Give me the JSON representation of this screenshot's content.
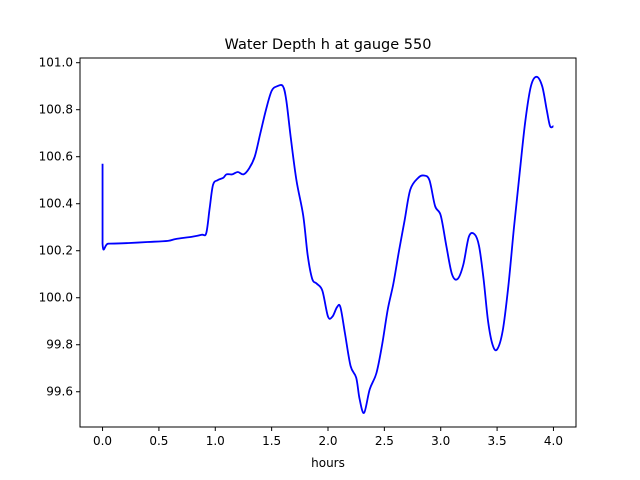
{
  "chart_data": {
    "type": "line",
    "title": "Water Depth h at gauge 550",
    "xlabel": "hours",
    "ylabel": "",
    "xlim": [
      -0.2,
      4.2
    ],
    "ylim": [
      99.45,
      101.02
    ],
    "grid": false,
    "xticks": [
      0.0,
      0.5,
      1.0,
      1.5,
      2.0,
      2.5,
      3.0,
      3.5,
      4.0
    ],
    "xtick_labels": [
      "0.0",
      "0.5",
      "1.0",
      "1.5",
      "2.0",
      "2.5",
      "3.0",
      "3.5",
      "4.0"
    ],
    "yticks": [
      99.6,
      99.8,
      100.0,
      100.2,
      100.4,
      100.6,
      100.8,
      101.0
    ],
    "ytick_labels": [
      "99.6",
      "99.8",
      "100.0",
      "100.2",
      "100.4",
      "100.6",
      "100.8",
      "101.0"
    ],
    "series": [
      {
        "color": "#0000ff",
        "x": [
          0.0,
          0.0,
          0.05,
          0.2,
          0.4,
          0.58,
          0.65,
          0.8,
          0.88,
          0.92,
          0.95,
          0.98,
          1.02,
          1.07,
          1.1,
          1.15,
          1.2,
          1.25,
          1.3,
          1.35,
          1.4,
          1.45,
          1.5,
          1.55,
          1.6,
          1.63,
          1.67,
          1.72,
          1.78,
          1.82,
          1.86,
          1.9,
          1.95,
          2.0,
          2.04,
          2.08,
          2.11,
          2.15,
          2.2,
          2.25,
          2.28,
          2.32,
          2.37,
          2.43,
          2.48,
          2.53,
          2.58,
          2.63,
          2.68,
          2.73,
          2.8,
          2.85,
          2.9,
          2.95,
          3.0,
          3.05,
          3.1,
          3.15,
          3.2,
          3.25,
          3.3,
          3.34,
          3.38,
          3.42,
          3.46,
          3.5,
          3.55,
          3.6,
          3.65,
          3.7,
          3.75,
          3.8,
          3.85,
          3.9,
          3.94,
          3.97,
          4.0
        ],
        "y": [
          100.57,
          100.23,
          100.23,
          100.232,
          100.237,
          100.242,
          100.25,
          100.26,
          100.268,
          100.275,
          100.38,
          100.48,
          100.5,
          100.51,
          100.525,
          100.525,
          100.535,
          100.525,
          100.55,
          100.6,
          100.7,
          100.8,
          100.88,
          100.9,
          100.9,
          100.84,
          100.68,
          100.5,
          100.35,
          100.18,
          100.08,
          100.06,
          100.03,
          99.92,
          99.92,
          99.96,
          99.96,
          99.85,
          99.71,
          99.66,
          99.57,
          99.51,
          99.61,
          99.68,
          99.8,
          99.95,
          100.06,
          100.2,
          100.33,
          100.46,
          100.51,
          100.52,
          100.5,
          100.39,
          100.35,
          100.22,
          100.1,
          100.08,
          100.14,
          100.26,
          100.27,
          100.22,
          100.08,
          99.9,
          99.8,
          99.78,
          99.86,
          100.05,
          100.3,
          100.53,
          100.75,
          100.9,
          100.94,
          100.9,
          100.8,
          100.73,
          100.73
        ]
      }
    ]
  }
}
